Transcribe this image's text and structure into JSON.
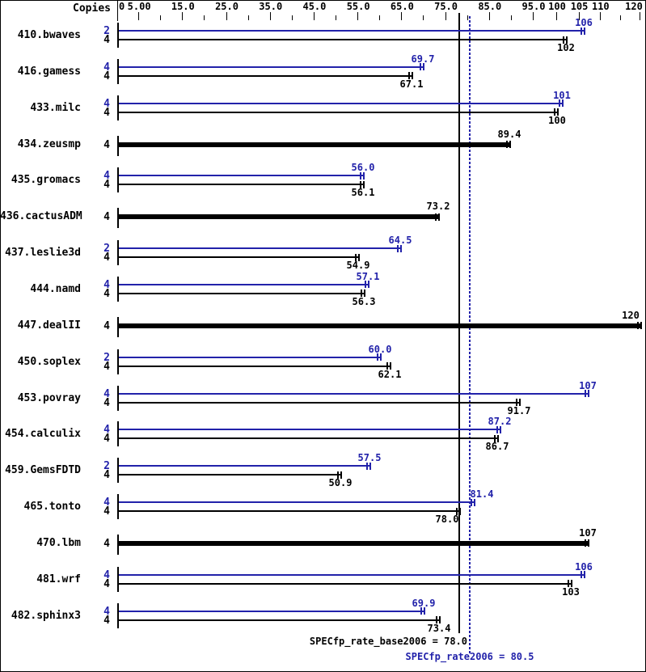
{
  "header": {
    "copies_label": "Copies"
  },
  "axis": {
    "major_ticks": [
      {
        "value": 0,
        "label": "0"
      },
      {
        "value": 5,
        "label": "5.00"
      },
      {
        "value": 15,
        "label": "15.0"
      },
      {
        "value": 25,
        "label": "25.0"
      },
      {
        "value": 35,
        "label": "35.0"
      },
      {
        "value": 45,
        "label": "45.0"
      },
      {
        "value": 55,
        "label": "55.0"
      },
      {
        "value": 65,
        "label": "65.0"
      },
      {
        "value": 75,
        "label": "75.0"
      },
      {
        "value": 85,
        "label": "85.0"
      },
      {
        "value": 95,
        "label": "95.0"
      },
      {
        "value": 100,
        "label": "100"
      },
      {
        "value": 105,
        "label": "105"
      },
      {
        "value": 110,
        "label": "110"
      },
      {
        "value": 120,
        "label": "120"
      }
    ],
    "minor_ticks": [
      10,
      20,
      30,
      40,
      50,
      60,
      70,
      80,
      90,
      115
    ]
  },
  "chart_data": {
    "type": "bar",
    "orientation": "horizontal",
    "x_range": [
      0,
      125
    ],
    "grid": false,
    "legend_position": "none",
    "series_legend": [
      {
        "name": "peak",
        "color": "#2222aa"
      },
      {
        "name": "base",
        "color": "#000000"
      }
    ],
    "rows": [
      {
        "name": "410.bwaves",
        "bars": [
          {
            "series": "peak",
            "copies": "2",
            "value": 106,
            "label": "106"
          },
          {
            "series": "base",
            "copies": "4",
            "value": 102,
            "label": "102"
          }
        ]
      },
      {
        "name": "416.gamess",
        "bars": [
          {
            "series": "peak",
            "copies": "4",
            "value": 69.7,
            "label": "69.7"
          },
          {
            "series": "base",
            "copies": "4",
            "value": 67.1,
            "label": "67.1"
          }
        ]
      },
      {
        "name": "433.milc",
        "bars": [
          {
            "series": "peak",
            "copies": "4",
            "value": 101,
            "label": "101"
          },
          {
            "series": "base",
            "copies": "4",
            "value": 100,
            "label": "100"
          }
        ]
      },
      {
        "name": "434.zeusmp",
        "bars": [
          {
            "series": "basepeak",
            "copies": "4",
            "value": 89.4,
            "label": "89.4"
          }
        ]
      },
      {
        "name": "435.gromacs",
        "bars": [
          {
            "series": "peak",
            "copies": "4",
            "value": 56.0,
            "label": "56.0"
          },
          {
            "series": "base",
            "copies": "4",
            "value": 56.1,
            "label": "56.1"
          }
        ]
      },
      {
        "name": "436.cactusADM",
        "bars": [
          {
            "series": "basepeak",
            "copies": "4",
            "value": 73.2,
            "label": "73.2"
          }
        ]
      },
      {
        "name": "437.leslie3d",
        "bars": [
          {
            "series": "peak",
            "copies": "2",
            "value": 64.5,
            "label": "64.5"
          },
          {
            "series": "base",
            "copies": "4",
            "value": 54.9,
            "label": "54.9"
          }
        ]
      },
      {
        "name": "444.namd",
        "bars": [
          {
            "series": "peak",
            "copies": "4",
            "value": 57.1,
            "label": "57.1"
          },
          {
            "series": "base",
            "copies": "4",
            "value": 56.3,
            "label": "56.3"
          }
        ]
      },
      {
        "name": "447.dealII",
        "bars": [
          {
            "series": "basepeak",
            "copies": "4",
            "value": 120,
            "label": "120"
          }
        ]
      },
      {
        "name": "450.soplex",
        "bars": [
          {
            "series": "peak",
            "copies": "2",
            "value": 60.0,
            "label": "60.0"
          },
          {
            "series": "base",
            "copies": "4",
            "value": 62.1,
            "label": "62.1"
          }
        ]
      },
      {
        "name": "453.povray",
        "bars": [
          {
            "series": "peak",
            "copies": "4",
            "value": 107,
            "label": "107"
          },
          {
            "series": "base",
            "copies": "4",
            "value": 91.7,
            "label": "91.7"
          }
        ]
      },
      {
        "name": "454.calculix",
        "bars": [
          {
            "series": "peak",
            "copies": "4",
            "value": 87.2,
            "label": "87.2"
          },
          {
            "series": "base",
            "copies": "4",
            "value": 86.7,
            "label": "86.7"
          }
        ]
      },
      {
        "name": "459.GemsFDTD",
        "bars": [
          {
            "series": "peak",
            "copies": "2",
            "value": 57.5,
            "label": "57.5"
          },
          {
            "series": "base",
            "copies": "4",
            "value": 50.9,
            "label": "50.9"
          }
        ]
      },
      {
        "name": "465.tonto",
        "bars": [
          {
            "series": "peak",
            "copies": "4",
            "value": 81.4,
            "label": "81.4",
            "label_dx": 10
          },
          {
            "series": "base",
            "copies": "4",
            "value": 78.0,
            "label": "78.0",
            "label_dx": -15
          }
        ]
      },
      {
        "name": "470.lbm",
        "bars": [
          {
            "series": "basepeak",
            "copies": "4",
            "value": 107,
            "label": "107"
          }
        ]
      },
      {
        "name": "481.wrf",
        "bars": [
          {
            "series": "peak",
            "copies": "4",
            "value": 106,
            "label": "106"
          },
          {
            "series": "base",
            "copies": "4",
            "value": 103,
            "label": "103"
          }
        ]
      },
      {
        "name": "482.sphinx3",
        "bars": [
          {
            "series": "peak",
            "copies": "4",
            "value": 69.9,
            "label": "69.9"
          },
          {
            "series": "base",
            "copies": "4",
            "value": 73.4,
            "label": "73.4"
          }
        ]
      }
    ],
    "reference_lines": [
      {
        "name": "base_mean",
        "value": 78.0,
        "style": "solid",
        "color": "#000000"
      },
      {
        "name": "peak_mean",
        "value": 80.5,
        "style": "dotted",
        "color": "#2222aa"
      }
    ]
  },
  "footer": {
    "base_label": "SPECfp_rate_base2006 = 78.0",
    "peak_label": "SPECfp_rate2006 = 80.5",
    "base_value": "78.0",
    "peak_value": "80.5"
  },
  "colors": {
    "peak_blue": "#2222aa",
    "black": "#000000",
    "background": "#ffffff"
  }
}
